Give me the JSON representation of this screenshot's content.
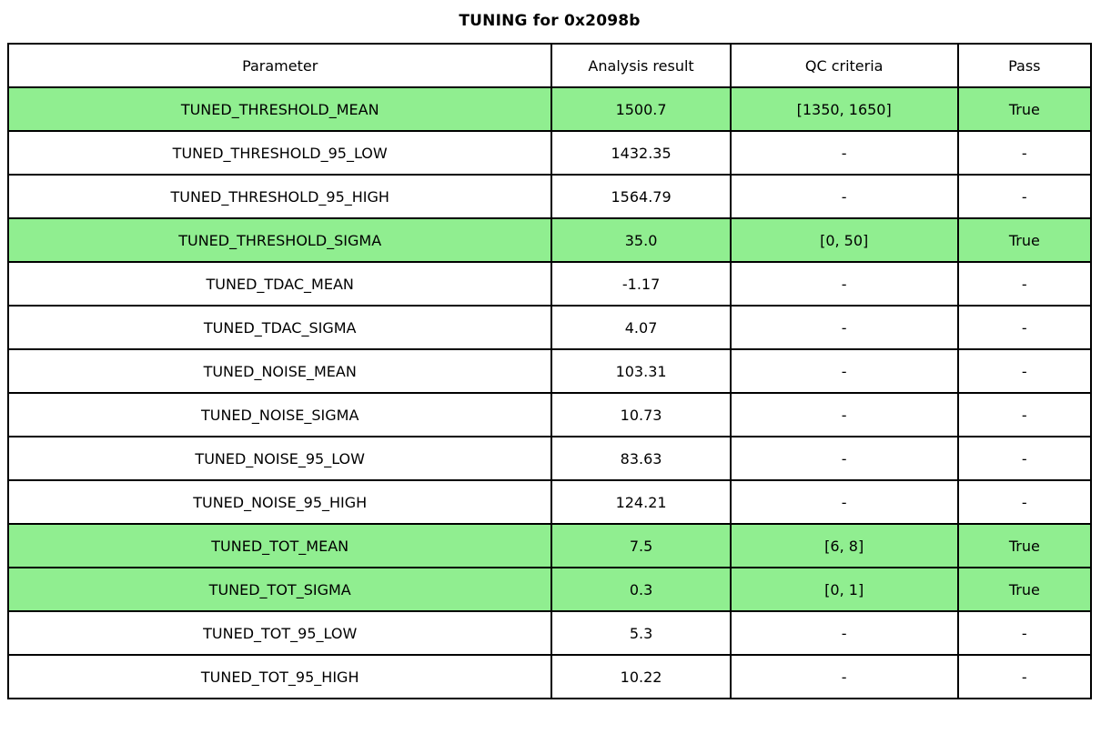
{
  "chart_data": {
    "type": "table",
    "title": "TUNING for 0x2098b",
    "columns": [
      "Parameter",
      "Analysis result",
      "QC criteria",
      "Pass"
    ],
    "rows": [
      {
        "cells": [
          "TUNED_THRESHOLD_MEAN",
          "1500.7",
          "[1350, 1650]",
          "True"
        ],
        "highlight": true
      },
      {
        "cells": [
          "TUNED_THRESHOLD_95_LOW",
          "1432.35",
          "-",
          "-"
        ],
        "highlight": false
      },
      {
        "cells": [
          "TUNED_THRESHOLD_95_HIGH",
          "1564.79",
          "-",
          "-"
        ],
        "highlight": false
      },
      {
        "cells": [
          "TUNED_THRESHOLD_SIGMA",
          "35.0",
          "[0, 50]",
          "True"
        ],
        "highlight": true
      },
      {
        "cells": [
          "TUNED_TDAC_MEAN",
          "-1.17",
          "-",
          "-"
        ],
        "highlight": false
      },
      {
        "cells": [
          "TUNED_TDAC_SIGMA",
          "4.07",
          "-",
          "-"
        ],
        "highlight": false
      },
      {
        "cells": [
          "TUNED_NOISE_MEAN",
          "103.31",
          "-",
          "-"
        ],
        "highlight": false
      },
      {
        "cells": [
          "TUNED_NOISE_SIGMA",
          "10.73",
          "-",
          "-"
        ],
        "highlight": false
      },
      {
        "cells": [
          "TUNED_NOISE_95_LOW",
          "83.63",
          "-",
          "-"
        ],
        "highlight": false
      },
      {
        "cells": [
          "TUNED_NOISE_95_HIGH",
          "124.21",
          "-",
          "-"
        ],
        "highlight": false
      },
      {
        "cells": [
          "TUNED_TOT_MEAN",
          "7.5",
          "[6, 8]",
          "True"
        ],
        "highlight": true
      },
      {
        "cells": [
          "TUNED_TOT_SIGMA",
          "0.3",
          "[0, 1]",
          "True"
        ],
        "highlight": true
      },
      {
        "cells": [
          "TUNED_TOT_95_LOW",
          "5.3",
          "-",
          "-"
        ],
        "highlight": false
      },
      {
        "cells": [
          "TUNED_TOT_95_HIGH",
          "10.22",
          "-",
          "-"
        ],
        "highlight": false
      }
    ],
    "layout": {
      "highlight_color": "#90EE90",
      "border_color": "#000000",
      "background_color": "#FFFFFF",
      "highlight_meaning": "row has QC criteria and passed"
    }
  }
}
